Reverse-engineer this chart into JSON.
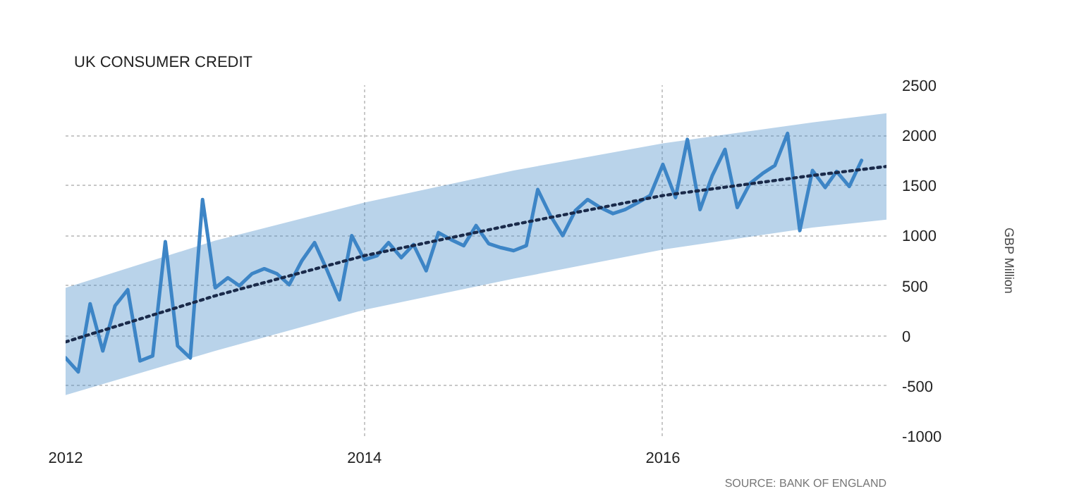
{
  "chart_data": {
    "type": "line",
    "title": "UK CONSUMER CREDIT",
    "ylabel": "GBP Million",
    "annotations": [
      "SOURCE: BANK OF ENGLAND"
    ],
    "x": [
      "2012-01",
      "2012-02",
      "2012-03",
      "2012-04",
      "2012-05",
      "2012-06",
      "2012-07",
      "2012-08",
      "2012-09",
      "2012-10",
      "2012-11",
      "2012-12",
      "2013-01",
      "2013-02",
      "2013-03",
      "2013-04",
      "2013-05",
      "2013-06",
      "2013-07",
      "2013-08",
      "2013-09",
      "2013-10",
      "2013-11",
      "2013-12",
      "2014-01",
      "2014-02",
      "2014-03",
      "2014-04",
      "2014-05",
      "2014-06",
      "2014-07",
      "2014-08",
      "2014-09",
      "2014-10",
      "2014-11",
      "2014-12",
      "2015-01",
      "2015-02",
      "2015-03",
      "2015-04",
      "2015-05",
      "2015-06",
      "2015-07",
      "2015-08",
      "2015-09",
      "2015-10",
      "2015-11",
      "2015-12",
      "2016-01",
      "2016-02",
      "2016-03",
      "2016-04",
      "2016-05",
      "2016-06",
      "2016-07",
      "2016-08",
      "2016-09",
      "2016-10",
      "2016-11",
      "2016-12",
      "2017-01",
      "2017-02",
      "2017-03",
      "2017-04",
      "2017-05"
    ],
    "series": [
      {
        "color": "#3d85c6",
        "line_style": "solid",
        "values": [
          -220,
          -360,
          320,
          -150,
          300,
          460,
          -250,
          -200,
          940,
          -100,
          -220,
          1360,
          480,
          580,
          500,
          620,
          670,
          620,
          510,
          750,
          930,
          660,
          360,
          1000,
          760,
          800,
          930,
          780,
          910,
          650,
          1030,
          960,
          900,
          1100,
          920,
          880,
          850,
          900,
          1460,
          1200,
          1000,
          1250,
          1360,
          1280,
          1220,
          1260,
          1330,
          1400,
          1710,
          1380,
          1960,
          1260,
          1600,
          1860,
          1280,
          1520,
          1620,
          1700,
          2020,
          1050,
          1650,
          1480,
          1640,
          1490,
          1750
        ]
      },
      {
        "color": "#1a2a4a",
        "line_style": "dotted",
        "x": [
          "2012-01",
          "2013-01",
          "2014-01",
          "2015-01",
          "2016-01",
          "2017-01",
          "2017-07"
        ],
        "values": [
          -60,
          400,
          800,
          1110,
          1400,
          1600,
          1690
        ],
        "lower": [
          -590,
          -150,
          260,
          570,
          860,
          1080,
          1160
        ],
        "upper": [
          480,
          950,
          1330,
          1650,
          1920,
          2130,
          2220
        ]
      }
    ],
    "xlim": [
      "2012-01",
      "2017-07"
    ],
    "xticks": [
      {
        "value": "2012-01",
        "label": "2012"
      },
      {
        "value": "2014-01",
        "label": "2014"
      },
      {
        "value": "2016-01",
        "label": "2016"
      }
    ],
    "ylim": [
      -1000,
      2500
    ],
    "yticks": [
      -1000,
      -500,
      0,
      500,
      1000,
      1500,
      2000,
      2500
    ],
    "grid": true,
    "marker": "none"
  }
}
